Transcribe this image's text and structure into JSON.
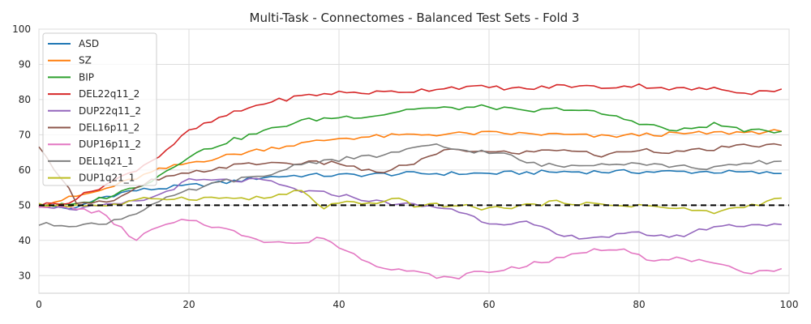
{
  "chart_data": {
    "type": "line",
    "title": "Multi-Task - Connectomes - Balanced Test Sets - Fold 3",
    "xlabel": "",
    "ylabel": "",
    "xlim": [
      0,
      100
    ],
    "ylim": [
      25,
      100
    ],
    "x_ticks": [
      "0",
      "20",
      "40",
      "60",
      "80",
      "100"
    ],
    "y_ticks": [
      "30",
      "40",
      "50",
      "60",
      "70",
      "80",
      "90",
      "100"
    ],
    "grid": true,
    "legend_position": "top-left",
    "reference_line": {
      "y": 50,
      "style": "dashed",
      "color": "#000000"
    },
    "x_step": 1,
    "series": [
      {
        "name": "ASD",
        "color": "#1f77b4",
        "keypoints": [
          [
            0,
            50
          ],
          [
            5,
            49
          ],
          [
            8,
            52
          ],
          [
            12,
            54
          ],
          [
            20,
            55.5
          ],
          [
            25,
            56.5
          ],
          [
            30,
            58
          ],
          [
            35,
            58.5
          ],
          [
            40,
            58.5
          ],
          [
            50,
            59
          ],
          [
            60,
            59
          ],
          [
            70,
            59.5
          ],
          [
            80,
            59.5
          ],
          [
            90,
            59.5
          ],
          [
            99,
            59
          ]
        ]
      },
      {
        "name": "SZ",
        "color": "#ff7f0e",
        "keypoints": [
          [
            0,
            50
          ],
          [
            4,
            52
          ],
          [
            8,
            54
          ],
          [
            12,
            57
          ],
          [
            16,
            60
          ],
          [
            20,
            62
          ],
          [
            25,
            64
          ],
          [
            30,
            66
          ],
          [
            35,
            67.5
          ],
          [
            40,
            69
          ],
          [
            50,
            70
          ],
          [
            60,
            70.5
          ],
          [
            70,
            70
          ],
          [
            75,
            69.5
          ],
          [
            80,
            70
          ],
          [
            90,
            70.5
          ],
          [
            99,
            71
          ]
        ]
      },
      {
        "name": "BIP",
        "color": "#2ca02c",
        "keypoints": [
          [
            0,
            50
          ],
          [
            5,
            50
          ],
          [
            10,
            53
          ],
          [
            15,
            57
          ],
          [
            20,
            64
          ],
          [
            25,
            68
          ],
          [
            30,
            71
          ],
          [
            35,
            74
          ],
          [
            40,
            75
          ],
          [
            45,
            75.5
          ],
          [
            50,
            77.5
          ],
          [
            55,
            77.5
          ],
          [
            60,
            78
          ],
          [
            65,
            76.5
          ],
          [
            70,
            77.5
          ],
          [
            75,
            76
          ],
          [
            80,
            73.5
          ],
          [
            85,
            71
          ],
          [
            90,
            73
          ],
          [
            95,
            71
          ],
          [
            99,
            71
          ]
        ]
      },
      {
        "name": "DEL22q11_2",
        "color": "#d62728",
        "keypoints": [
          [
            0,
            50
          ],
          [
            4,
            51
          ],
          [
            8,
            55
          ],
          [
            12,
            59
          ],
          [
            16,
            64
          ],
          [
            20,
            71
          ],
          [
            25,
            75.5
          ],
          [
            30,
            79
          ],
          [
            35,
            81
          ],
          [
            40,
            82
          ],
          [
            45,
            82
          ],
          [
            50,
            82.5
          ],
          [
            55,
            83.5
          ],
          [
            60,
            83.5
          ],
          [
            65,
            83
          ],
          [
            70,
            84
          ],
          [
            75,
            83.5
          ],
          [
            80,
            84
          ],
          [
            85,
            83
          ],
          [
            90,
            83
          ],
          [
            95,
            82
          ],
          [
            99,
            83
          ]
        ]
      },
      {
        "name": "DUP22q11_2",
        "color": "#9467bd",
        "keypoints": [
          [
            0,
            50
          ],
          [
            5,
            49
          ],
          [
            10,
            50
          ],
          [
            15,
            52
          ],
          [
            20,
            57
          ],
          [
            25,
            57
          ],
          [
            30,
            57
          ],
          [
            35,
            54
          ],
          [
            40,
            53
          ],
          [
            45,
            51
          ],
          [
            50,
            50
          ],
          [
            55,
            49
          ],
          [
            60,
            45
          ],
          [
            65,
            45
          ],
          [
            70,
            41
          ],
          [
            75,
            41
          ],
          [
            80,
            42
          ],
          [
            85,
            41
          ],
          [
            90,
            44
          ],
          [
            95,
            44.5
          ],
          [
            99,
            44.5
          ]
        ]
      },
      {
        "name": "DEL16p11_2",
        "color": "#8c564b",
        "keypoints": [
          [
            0,
            66
          ],
          [
            3,
            58
          ],
          [
            5,
            51
          ],
          [
            10,
            51
          ],
          [
            15,
            57
          ],
          [
            20,
            59
          ],
          [
            25,
            61
          ],
          [
            30,
            62
          ],
          [
            35,
            62
          ],
          [
            40,
            62
          ],
          [
            45,
            59
          ],
          [
            50,
            62
          ],
          [
            55,
            66
          ],
          [
            60,
            65
          ],
          [
            65,
            65
          ],
          [
            70,
            66
          ],
          [
            75,
            64
          ],
          [
            80,
            66
          ],
          [
            85,
            65
          ],
          [
            90,
            66
          ],
          [
            95,
            67
          ],
          [
            99,
            67
          ]
        ]
      },
      {
        "name": "DUP16p11_2",
        "color": "#e377c2",
        "keypoints": [
          [
            0,
            50
          ],
          [
            5,
            49
          ],
          [
            8,
            48
          ],
          [
            10,
            45
          ],
          [
            13,
            40
          ],
          [
            15,
            43
          ],
          [
            20,
            46
          ],
          [
            25,
            43
          ],
          [
            30,
            40
          ],
          [
            35,
            39
          ],
          [
            38,
            41
          ],
          [
            40,
            38
          ],
          [
            45,
            33
          ],
          [
            50,
            31
          ],
          [
            55,
            29
          ],
          [
            58,
            31
          ],
          [
            60,
            31
          ],
          [
            65,
            33
          ],
          [
            70,
            35
          ],
          [
            73,
            37
          ],
          [
            78,
            38
          ],
          [
            82,
            34
          ],
          [
            86,
            35
          ],
          [
            90,
            33
          ],
          [
            95,
            31
          ],
          [
            99,
            32
          ]
        ]
      },
      {
        "name": "DEL1q21_1",
        "color": "#7f7f7f",
        "keypoints": [
          [
            0,
            44.5
          ],
          [
            8,
            44.5
          ],
          [
            12,
            47
          ],
          [
            16,
            51
          ],
          [
            20,
            54
          ],
          [
            25,
            57
          ],
          [
            30,
            58
          ],
          [
            35,
            62
          ],
          [
            40,
            63
          ],
          [
            45,
            64
          ],
          [
            50,
            66
          ],
          [
            53,
            67
          ],
          [
            55,
            66
          ],
          [
            60,
            65
          ],
          [
            63,
            64
          ],
          [
            65,
            62
          ],
          [
            70,
            61
          ],
          [
            75,
            62
          ],
          [
            80,
            62
          ],
          [
            85,
            61
          ],
          [
            90,
            60.5
          ],
          [
            95,
            62
          ],
          [
            99,
            62.5
          ]
        ]
      },
      {
        "name": "DUP1q21_1",
        "color": "#bcbd22",
        "keypoints": [
          [
            0,
            50
          ],
          [
            5,
            50
          ],
          [
            10,
            50
          ],
          [
            15,
            52
          ],
          [
            20,
            52
          ],
          [
            25,
            52
          ],
          [
            30,
            52
          ],
          [
            35,
            54
          ],
          [
            38,
            49
          ],
          [
            40,
            51
          ],
          [
            45,
            50
          ],
          [
            48,
            52
          ],
          [
            50,
            50
          ],
          [
            55,
            50
          ],
          [
            60,
            49
          ],
          [
            65,
            50
          ],
          [
            70,
            51
          ],
          [
            75,
            50
          ],
          [
            80,
            50
          ],
          [
            85,
            49
          ],
          [
            90,
            48
          ],
          [
            95,
            50
          ],
          [
            99,
            52
          ]
        ]
      }
    ]
  }
}
